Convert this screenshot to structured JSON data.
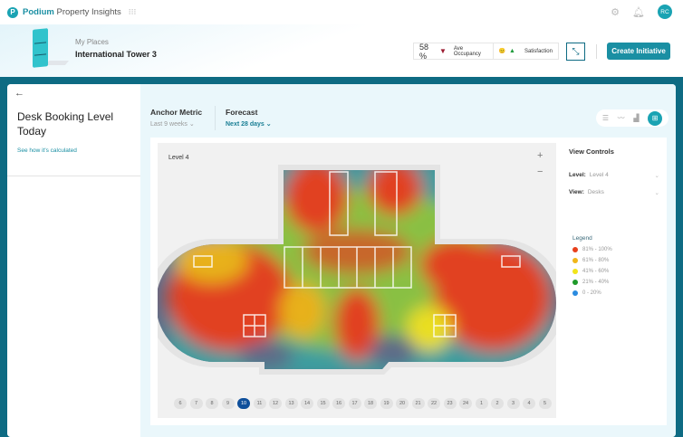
{
  "app": {
    "brand_bold": "Podium",
    "brand_rest": "Property Insights",
    "logo_letter": "P",
    "avatar": "RC"
  },
  "header": {
    "breadcrumb": "My Places",
    "place": "International Tower 3",
    "occupancy": {
      "value": "58 %",
      "label": "Ave Occupancy",
      "trend": "down"
    },
    "satisfaction": {
      "emoji": "😐",
      "label": "Satisfaction",
      "trend": "up"
    },
    "create_label": "Create Initiative"
  },
  "left": {
    "back": "←",
    "title": "Desk Booking Level Today",
    "link": "See how it's calculated"
  },
  "filters": {
    "anchor_label": "Anchor Metric",
    "anchor_value": "Last 9 weeks",
    "forecast_label": "Forecast",
    "forecast_value": "Next 28 days",
    "active_view": "map"
  },
  "map": {
    "level": "Level 4",
    "zoom_in": "+",
    "zoom_out": "−",
    "hours": [
      "6",
      "7",
      "8",
      "9",
      "10",
      "11",
      "12",
      "13",
      "14",
      "15",
      "16",
      "17",
      "18",
      "19",
      "20",
      "21",
      "22",
      "23",
      "24",
      "1",
      "2",
      "3",
      "4",
      "5"
    ],
    "selected_hour": "10"
  },
  "controls": {
    "title": "View Controls",
    "level_label": "Level:",
    "level_value": "Level 4",
    "view_label": "View:",
    "view_value": "Desks"
  },
  "legend": {
    "title": "Legend",
    "items": [
      {
        "label": "81% - 100%",
        "color": "#e8401c"
      },
      {
        "label": "61% - 80%",
        "color": "#f0b619"
      },
      {
        "label": "41% - 60%",
        "color": "#f2e51a"
      },
      {
        "label": "21% - 40%",
        "color": "#1f9a2a"
      },
      {
        "label": "0 - 20%",
        "color": "#2a8be0"
      }
    ]
  }
}
